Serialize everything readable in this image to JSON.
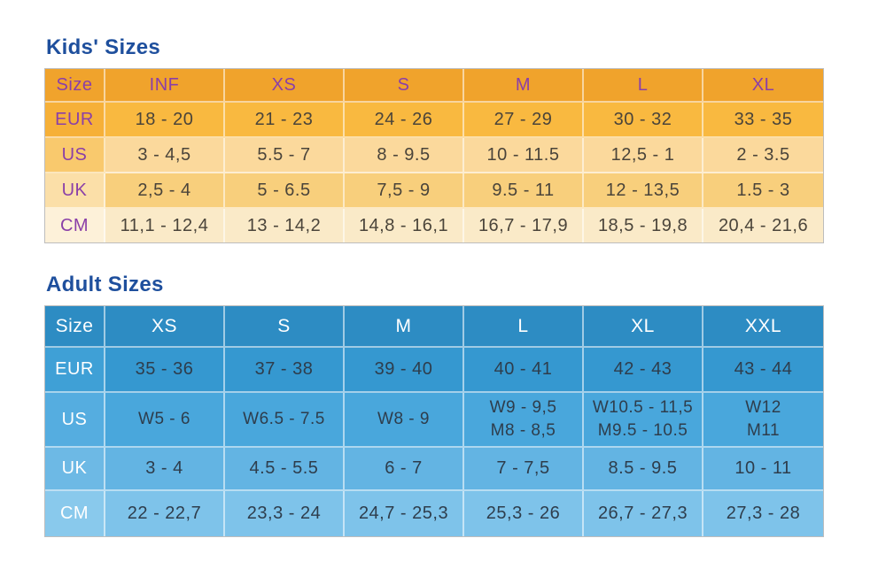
{
  "chart_data": [
    {
      "type": "table",
      "title": "Kids' Sizes",
      "header": [
        "Size",
        "INF",
        "XS",
        "S",
        "M",
        "L",
        "XL"
      ],
      "rows": [
        {
          "label": "EUR",
          "values": [
            "18 - 20",
            "21 - 23",
            "24 - 26",
            "27 - 29",
            "30 - 32",
            "33 - 35"
          ]
        },
        {
          "label": "US",
          "values": [
            "3 - 4,5",
            "5.5 - 7",
            "8 - 9.5",
            "10 - 11.5",
            "12,5 - 1",
            "2 - 3.5"
          ]
        },
        {
          "label": "UK",
          "values": [
            "2,5 - 4",
            "5 - 6.5",
            "7,5 - 9",
            "9.5 - 11",
            "12 - 13,5",
            "1.5 - 3"
          ]
        },
        {
          "label": "CM",
          "values": [
            "11,1 - 12,4",
            "13 - 14,2",
            "14,8 - 16,1",
            "16,7 - 17,9",
            "18,5 - 19,8",
            "20,4 - 21,6"
          ]
        }
      ],
      "colors": {
        "title_text": "#1e4f9d",
        "header_bg": "#f0a32c",
        "header_text": "#8a3fa8",
        "label_text": "#8a3fa8",
        "data_text": "#4a443a",
        "row_bg": [
          "#f9b940",
          "#fbd99c",
          "#f8cf7c",
          "#faeac8"
        ],
        "label_bg": [
          "#f6b038",
          "#f9c96d",
          "#fbdfa8",
          "#fdf1d9"
        ],
        "outer_border": "#bdbdbd"
      }
    },
    {
      "type": "table",
      "title": "Adult Sizes",
      "header": [
        "Size",
        "XS",
        "S",
        "M",
        "L",
        "XL",
        "XXL"
      ],
      "rows": [
        {
          "label": "EUR",
          "values": [
            "35 - 36",
            "37 - 38",
            "39 - 40",
            "40 - 41",
            "42 - 43",
            "43 - 44"
          ]
        },
        {
          "label": "US",
          "values": [
            "W5 - 6",
            "W6.5 - 7.5",
            "W8 - 9",
            "W9 - 9,5\nM8 - 8,5",
            "W10.5 - 11,5\nM9.5 - 10.5",
            "W12\nM11"
          ]
        },
        {
          "label": "UK",
          "values": [
            "3 - 4",
            "4.5 - 5.5",
            "6 - 7",
            "7 - 7,5",
            "8.5 - 9.5",
            "10 - 11"
          ]
        },
        {
          "label": "CM",
          "values": [
            "22 - 22,7",
            "23,3 - 24",
            "24,7 - 25,3",
            "25,3 - 26",
            "26,7 - 27,3",
            "27,3 - 28"
          ]
        }
      ],
      "colors": {
        "title_text": "#1e4f9d",
        "header_bg": "#2d8cc3",
        "header_text": "#ffffff",
        "label_text": "#ffffff",
        "data_text": "#2e3d4c",
        "row_bg": [
          "#3598d0",
          "#49a7dc",
          "#63b4e3",
          "#7ec3ea"
        ],
        "label_bg": [
          "#3fa0d6",
          "#55ade0",
          "#6db9e5",
          "#89c9ec"
        ],
        "outer_border": "#bdbdbd"
      }
    }
  ]
}
